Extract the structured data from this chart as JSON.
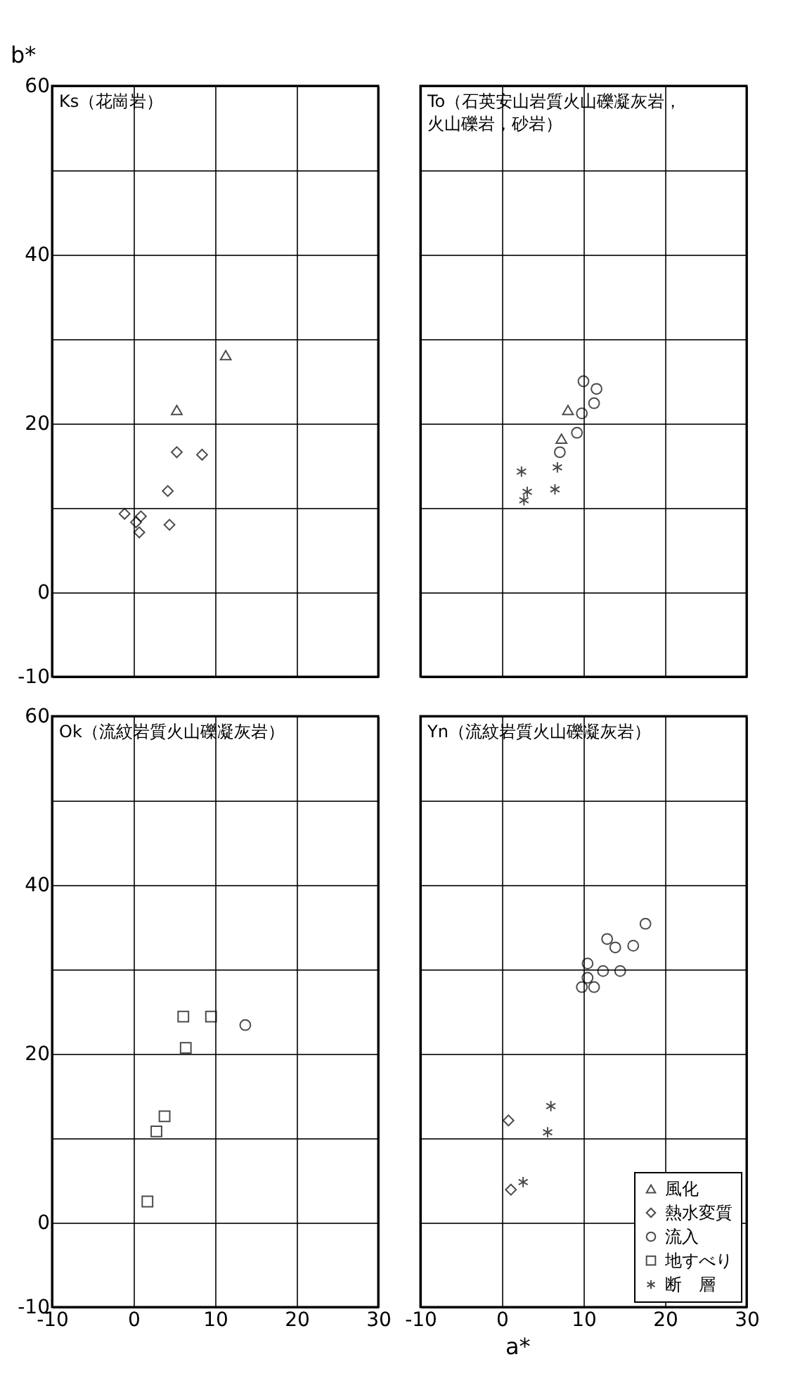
{
  "chart_data": [
    {
      "type": "scatter",
      "title": "Ks（花崗岩）",
      "ylabel": "b*",
      "xlim": [
        -10,
        30
      ],
      "ylim": [
        -10,
        60
      ],
      "xticks": [
        -10,
        0,
        10,
        20,
        30
      ],
      "yticks": [
        -10,
        0,
        {
          "value": 10,
          "label": null
        },
        20,
        {
          "value": 30,
          "label": null
        },
        40,
        {
          "value": 50,
          "label": null
        },
        60
      ],
      "grid": true,
      "tick_labels": "y",
      "series": [
        {
          "marker": "triangle",
          "color": "#000000",
          "x": [
            11.3,
            5.3
          ],
          "values": [
            28.1,
            21.6
          ]
        },
        {
          "marker": "diamond",
          "color": "#000000",
          "x": [
            5.3,
            8.4,
            4.2,
            4.4,
            -1.1,
            0.9,
            0.3,
            0.7
          ],
          "values": [
            16.6,
            16.3,
            12.0,
            8.0,
            9.3,
            9.0,
            8.3,
            7.1
          ]
        }
      ]
    },
    {
      "type": "scatter",
      "title": "To（石英安山岩質火山礫凝灰岩，火山礫岩，砂岩）",
      "xlim": [
        -10,
        30
      ],
      "ylim": [
        -10,
        60
      ],
      "xticks": [
        -10,
        0,
        10,
        20,
        30
      ],
      "yticks": [
        -10,
        0,
        {
          "value": 10,
          "label": null
        },
        20,
        {
          "value": 30,
          "label": null
        },
        40,
        {
          "value": 50,
          "label": null
        },
        60
      ],
      "grid": true,
      "tick_labels": false,
      "series": [
        {
          "marker": "triangle",
          "color": "#000000",
          "x": [
            8.1,
            7.3
          ],
          "values": [
            21.6,
            18.2
          ]
        },
        {
          "marker": "circle",
          "color": "#000000",
          "x": [
            10.0,
            11.6,
            11.3,
            9.8,
            9.2,
            7.1
          ],
          "values": [
            25.0,
            24.1,
            22.4,
            21.2,
            18.9,
            16.6
          ]
        },
        {
          "marker": "cross",
          "color": "#000000",
          "x": [
            2.4,
            3.1,
            2.7,
            6.8,
            6.5
          ],
          "values": [
            14.3,
            11.9,
            10.9,
            14.8,
            12.2
          ]
        }
      ]
    },
    {
      "type": "scatter",
      "title": "Ok（流紋岩質火山礫凝灰岩）",
      "xlim": [
        -10,
        30
      ],
      "ylim": [
        -10,
        60
      ],
      "xticks": [
        -10,
        0,
        10,
        20,
        30
      ],
      "yticks": [
        -10,
        0,
        {
          "value": 10,
          "label": null
        },
        20,
        {
          "value": 30,
          "label": null
        },
        40,
        {
          "value": 50,
          "label": null
        },
        60
      ],
      "grid": true,
      "series": [
        {
          "marker": "circle",
          "color": "#000000",
          "x": [
            13.7
          ],
          "values": [
            23.4
          ]
        },
        {
          "marker": "square",
          "color": "#000000",
          "x": [
            6.1,
            9.5,
            6.4,
            3.8,
            2.8,
            1.7
          ],
          "values": [
            24.4,
            24.4,
            20.7,
            12.6,
            10.8,
            2.5
          ]
        }
      ]
    },
    {
      "type": "scatter",
      "title": "Yn（流紋岩質火山礫凝灰岩）",
      "xlabel": "a*",
      "xlim": [
        -10,
        30
      ],
      "ylim": [
        -10,
        60
      ],
      "xticks": [
        -10,
        0,
        10,
        20,
        30
      ],
      "yticks": [
        -10,
        0,
        {
          "value": 10,
          "label": null
        },
        20,
        {
          "value": 30,
          "label": null
        },
        40,
        {
          "value": 50,
          "label": null
        },
        60
      ],
      "grid": true,
      "tick_labels": "x",
      "legend": "bottom right",
      "series": [
        {
          "name": "風化",
          "marker": "triangle",
          "color": "#000000"
        },
        {
          "name": "熱水変質",
          "marker": "diamond",
          "color": "#000000",
          "x": [
            0.8,
            1.1
          ],
          "values": [
            12.1,
            3.9
          ]
        },
        {
          "name": "流入",
          "marker": "circle",
          "color": "#000000",
          "x": [
            17.6,
            12.9,
            13.9,
            16.1,
            10.5,
            12.4,
            14.5,
            10.5,
            9.8,
            11.3
          ],
          "values": [
            35.4,
            33.6,
            32.6,
            32.8,
            30.7,
            29.8,
            29.8,
            29.0,
            27.9,
            27.9
          ]
        },
        {
          "name": "地すべり",
          "marker": "square",
          "color": "#000000"
        },
        {
          "name": "断　層",
          "marker": "cross",
          "color": "#000000",
          "x": [
            6.0,
            5.6,
            2.6
          ],
          "values": [
            13.8,
            10.7,
            4.8
          ]
        }
      ]
    }
  ]
}
